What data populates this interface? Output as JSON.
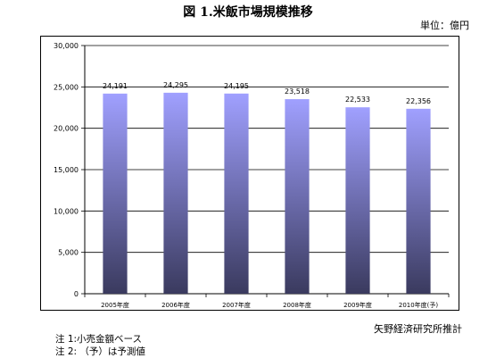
{
  "title": "図 1.米飯市場規模推移",
  "unit": "単位：億円",
  "source": "矢野経済研究所推計",
  "notes": [
    "注 1:小売金額ベース",
    "注 2: （予）は予測値"
  ],
  "colors": {
    "bar_top": "#a0a0ff",
    "bar_bottom": "#3a3a5e"
  },
  "chart_data": {
    "type": "bar",
    "title": "図 1.米飯市場規模推移",
    "xlabel": "",
    "ylabel": "",
    "unit": "単位：億円",
    "categories": [
      "2005年度",
      "2006年度",
      "2007年度",
      "2008年度",
      "2009年度",
      "2010年度(予)"
    ],
    "values": [
      24191,
      24295,
      24195,
      23518,
      22533,
      22356
    ],
    "value_labels": [
      "24,191",
      "24,295",
      "24,195",
      "23,518",
      "22,533",
      "22,356"
    ],
    "ylim": [
      0,
      30000
    ],
    "yticks": [
      0,
      5000,
      10000,
      15000,
      20000,
      25000,
      30000
    ],
    "ytick_labels": [
      "0",
      "5,000",
      "10,000",
      "15,000",
      "20,000",
      "25,000",
      "30,000"
    ],
    "grid": true,
    "legend": "none"
  }
}
